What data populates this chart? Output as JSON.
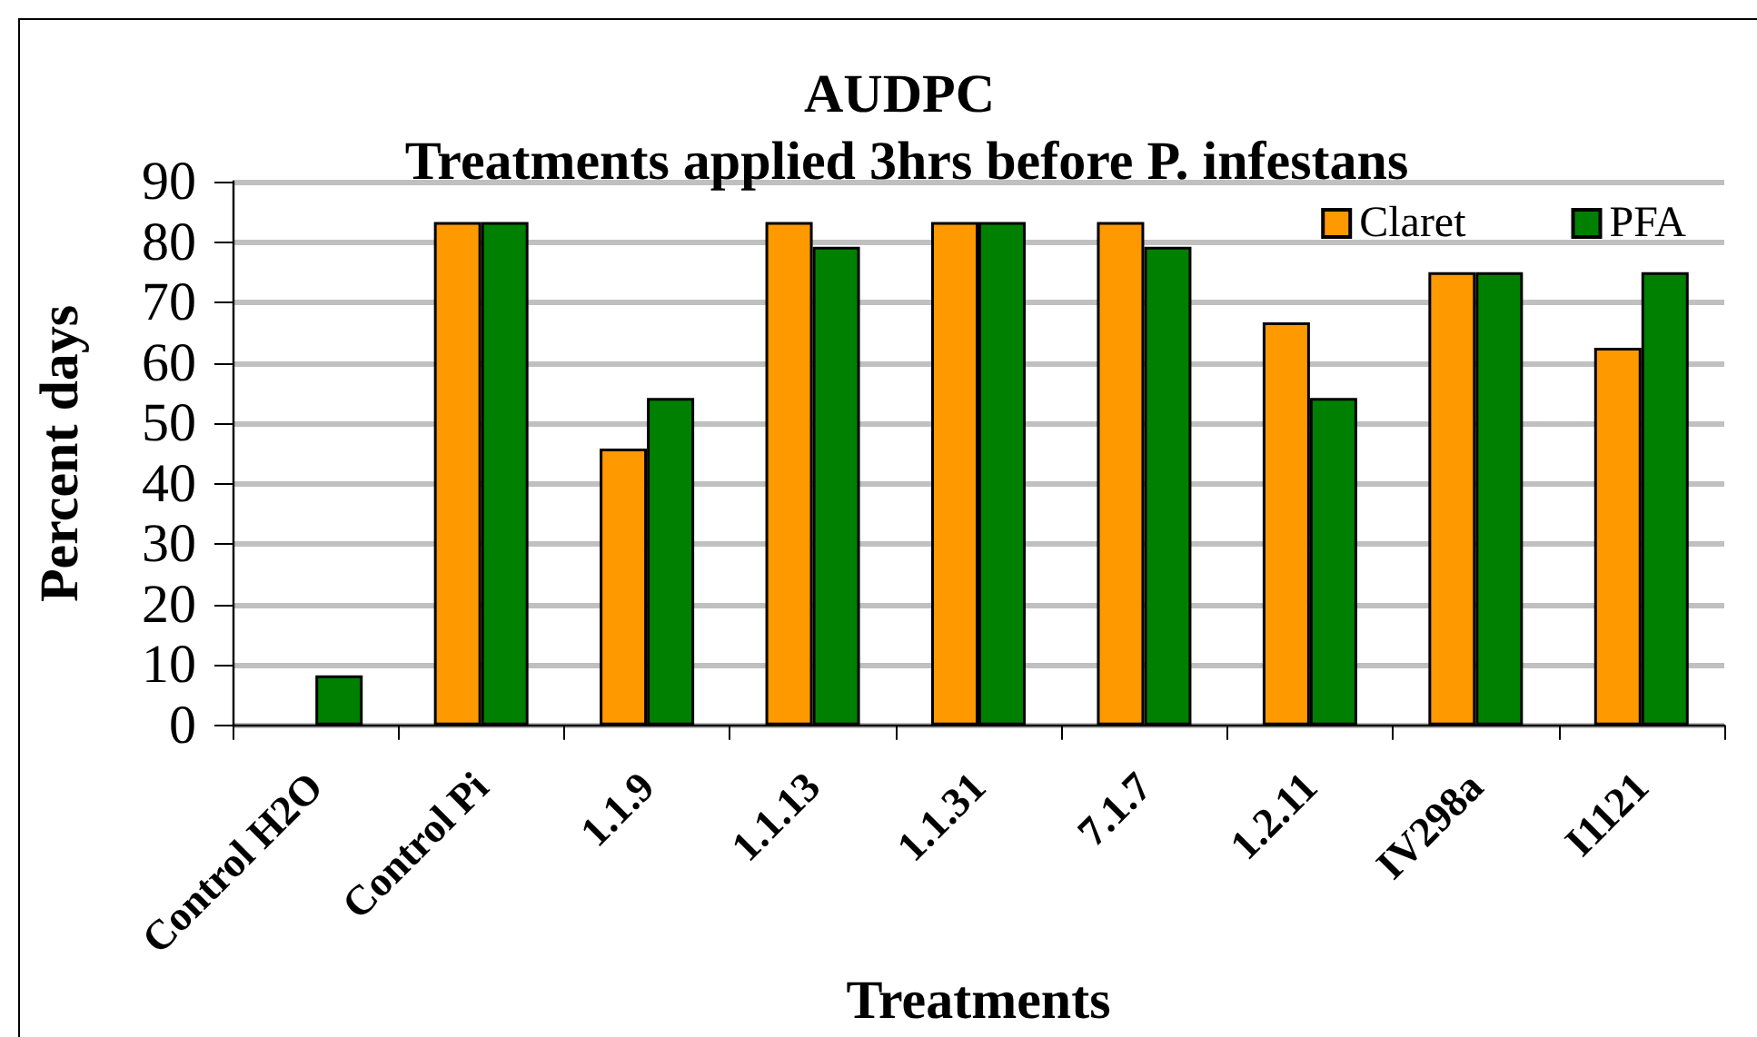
{
  "chart_data": {
    "type": "bar",
    "title": "AUDPC",
    "subtitle": "Treatments applied 3hrs before P. infestans",
    "xlabel": "Treatments",
    "ylabel": "Percent days",
    "categories": [
      "Control H2O",
      "Control Pi",
      "1.1.9",
      "1.1.13",
      "1.1.31",
      "7.1.7",
      "1.2.11",
      "IV298a",
      "I1121"
    ],
    "series": [
      {
        "name": "Claret",
        "color": "#ff9900",
        "values": [
          null,
          83.3,
          45.8,
          83.3,
          83.3,
          83.3,
          66.7,
          75,
          62.5
        ]
      },
      {
        "name": "PFA",
        "color": "#008000",
        "values": [
          8.3,
          83.3,
          54.2,
          79.2,
          83.3,
          79.2,
          54.2,
          75,
          75
        ]
      }
    ],
    "ylim": [
      0,
      90
    ],
    "yticks": [
      0,
      10,
      20,
      30,
      40,
      50,
      60,
      70,
      80,
      90
    ],
    "grid": "y",
    "legend": "top right"
  }
}
